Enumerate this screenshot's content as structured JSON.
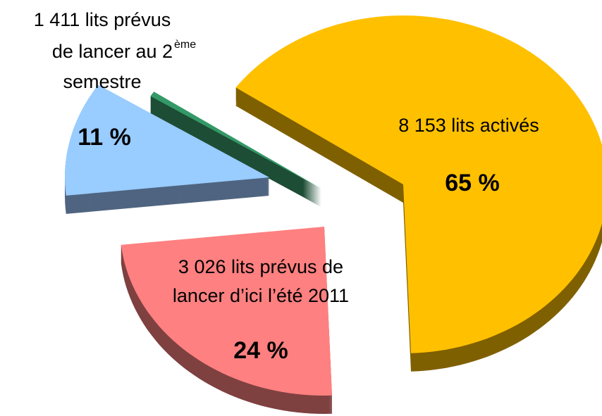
{
  "chart_data": {
    "type": "pie",
    "slices": [
      {
        "label_lines": [
          "8 153 lits activés"
        ],
        "value": 65,
        "value_label": "65 %",
        "color": "#ffc000",
        "side_color": "#7f6000"
      },
      {
        "label_lines": [
          "3 026 lits prévus de",
          "lancer d’ici l’été 2011"
        ],
        "value": 24,
        "value_label": "24 %",
        "color": "#ff8080",
        "side_color": "#7f4040"
      },
      {
        "label_lines": [
          "1 411 lits prévus",
          "de lancer au 2",
          "semestre"
        ],
        "label_superscript": "ème",
        "value": 11,
        "value_label": "11 %",
        "color": "#99ccff",
        "side_color": "#4f6480"
      },
      {
        "label_lines": null,
        "value": 0.5,
        "color": "#339966",
        "side_color": "#1d4d35"
      }
    ]
  }
}
